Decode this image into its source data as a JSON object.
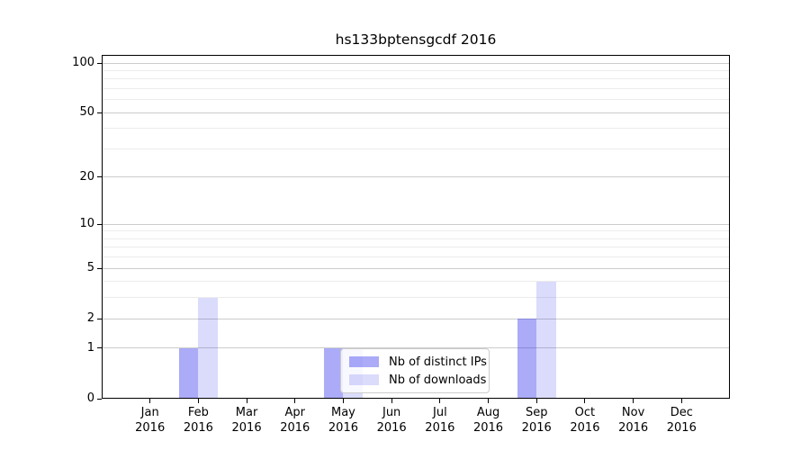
{
  "title": "hs133bptensgcdf 2016",
  "chart_data": {
    "type": "bar",
    "title": "hs133bptensgcdf 2016",
    "x_categories": [
      "Jan",
      "Feb",
      "Mar",
      "Apr",
      "May",
      "Jun",
      "Jul",
      "Aug",
      "Sep",
      "Oct",
      "Nov",
      "Dec"
    ],
    "x_year": "2016",
    "series": [
      {
        "name": "Nb of distinct IPs",
        "values": [
          0,
          1,
          0,
          0,
          1,
          0,
          0,
          0,
          2,
          0,
          0,
          0
        ],
        "color": "rgba(13,13,235,0.35)"
      },
      {
        "name": "Nb of downloads",
        "values": [
          0,
          3,
          0,
          0,
          1,
          0,
          0,
          0,
          4,
          0,
          0,
          0
        ],
        "color": "rgba(13,13,235,0.15)"
      }
    ],
    "y_axis": {
      "scale": "log1p",
      "ticks": [
        0,
        1,
        2,
        5,
        10,
        20,
        50,
        100
      ],
      "minor_ticks": [
        3,
        4,
        6,
        7,
        8,
        9,
        30,
        40,
        60,
        70,
        80,
        90
      ],
      "max": 112
    },
    "legend": {
      "entries": [
        "Nb of distinct IPs",
        "Nb of downloads"
      ],
      "position": "lower-center"
    },
    "colors": {
      "bar_distinct_ips": "#a9a9f8",
      "bar_downloads": "#dadaf8",
      "grid_major": "#cccccc",
      "grid_minor": "#ececec",
      "spine": "#000000",
      "background": "#ffffff"
    }
  }
}
